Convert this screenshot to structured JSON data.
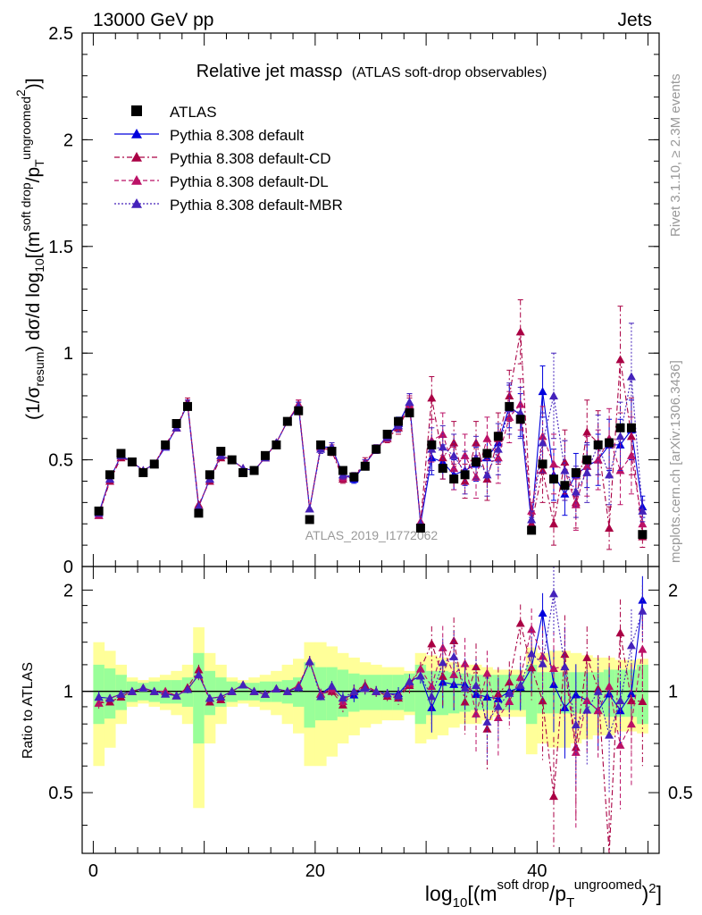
{
  "header": {
    "left": "13000 GeV pp",
    "right": "Jets"
  },
  "side": {
    "rivet": "Rivet 3.1.10, ≥ 2.3M events",
    "mcplots": "mcplots.cern.ch [arXiv:1306.3436]"
  },
  "watermark": "ATLAS_2019_I1772062",
  "chart_data": {
    "type": "scatter",
    "title": "Relative jet massρ",
    "subtitle": "(ATLAS soft-drop observables)",
    "xlabel_parts": {
      "pre": "log",
      "sub10": "10",
      "bracket": "[(m",
      "sup_sd": "soft drop",
      "slash": "/p",
      "sub_T": "T",
      "sup_ug": "ungroomed",
      "close": ")",
      "sup2": "2",
      "end": "]"
    },
    "ylabel_parts": {
      "pre": "(1/σ",
      "sub_resum": "resum",
      "mid": ") dσ/d log",
      "sub10": "10",
      "bracket": "[(m",
      "sup_sd": "soft drop",
      "slash": "/p",
      "sub_T": "T",
      "sup_ug": "ungroomed",
      "sup2": "2",
      "end": ")]"
    },
    "ratio_ylabel": "Ratio to ATLAS",
    "xlim": [
      -1,
      51
    ],
    "ylim": [
      0,
      2.5
    ],
    "ratio_ylim": [
      0.33,
      2.35
    ],
    "x_ticks": [
      0,
      20,
      40
    ],
    "y_ticks": [
      0,
      0.5,
      1,
      1.5,
      2,
      2.5
    ],
    "y_tick_labels": [
      "0",
      "0.5",
      "1",
      "1.5",
      "2",
      "2.5"
    ],
    "ratio_ticks": [
      0.5,
      1,
      2
    ],
    "ratio_tick_labels": [
      "0.5",
      "1",
      "2"
    ],
    "legend_position": "top-left",
    "x": [
      0.5,
      1.5,
      2.5,
      3.5,
      4.5,
      5.5,
      6.5,
      7.5,
      8.5,
      9.5,
      10.5,
      11.5,
      12.5,
      13.5,
      14.5,
      15.5,
      16.5,
      17.5,
      18.5,
      19.5,
      20.5,
      21.5,
      22.5,
      23.5,
      24.5,
      25.5,
      26.5,
      27.5,
      28.5,
      29.5,
      30.5,
      31.5,
      32.5,
      33.5,
      34.5,
      35.5,
      36.5,
      37.5,
      38.5,
      39.5,
      40.5,
      41.5,
      42.5,
      43.5,
      44.5,
      45.5,
      46.5,
      47.5,
      48.5,
      49.5
    ],
    "data": {
      "name": "ATLAS",
      "color": "#000000",
      "values": [
        0.26,
        0.43,
        0.53,
        0.49,
        0.44,
        0.48,
        0.57,
        0.67,
        0.75,
        0.25,
        0.43,
        0.54,
        0.5,
        0.44,
        0.45,
        0.52,
        0.57,
        0.68,
        0.73,
        0.22,
        0.57,
        0.54,
        0.45,
        0.42,
        0.47,
        0.55,
        0.62,
        0.68,
        0.72,
        0.18,
        0.57,
        0.46,
        0.41,
        0.43,
        0.49,
        0.53,
        0.61,
        0.75,
        0.69,
        0.17,
        0.48,
        0.41,
        0.38,
        0.44,
        0.5,
        0.57,
        0.58,
        0.65,
        0.65,
        0.15
      ],
      "band_inner": [
        0.2,
        0.17,
        0.12,
        0.07,
        0.06,
        0.07,
        0.08,
        0.08,
        0.1,
        0.3,
        0.15,
        0.1,
        0.07,
        0.06,
        0.06,
        0.07,
        0.07,
        0.08,
        0.1,
        0.22,
        0.18,
        0.18,
        0.16,
        0.13,
        0.12,
        0.12,
        0.12,
        0.12,
        0.13,
        0.2,
        0.15,
        0.15,
        0.14,
        0.13,
        0.12,
        0.12,
        0.12,
        0.12,
        0.12,
        0.2,
        0.14,
        0.14,
        0.14,
        0.14,
        0.14,
        0.14,
        0.16,
        0.16,
        0.16,
        0.2
      ],
      "band_outer": [
        0.4,
        0.32,
        0.2,
        0.1,
        0.08,
        0.1,
        0.12,
        0.15,
        0.2,
        0.55,
        0.3,
        0.2,
        0.1,
        0.08,
        0.1,
        0.12,
        0.15,
        0.2,
        0.25,
        0.4,
        0.4,
        0.36,
        0.3,
        0.26,
        0.22,
        0.2,
        0.18,
        0.18,
        0.15,
        0.3,
        0.28,
        0.26,
        0.22,
        0.2,
        0.2,
        0.18,
        0.16,
        0.16,
        0.16,
        0.35,
        0.3,
        0.32,
        0.32,
        0.3,
        0.28,
        0.26,
        0.26,
        0.24,
        0.24,
        0.25
      ]
    },
    "series": [
      {
        "name": "Pythia 8.308 default",
        "color": "#0000dd",
        "dash": "",
        "marker": "triangle",
        "values": [
          0.25,
          0.41,
          0.52,
          0.49,
          0.45,
          0.48,
          0.56,
          0.65,
          0.76,
          0.28,
          0.41,
          0.52,
          0.5,
          0.46,
          0.45,
          0.51,
          0.58,
          0.68,
          0.75,
          0.27,
          0.56,
          0.56,
          0.43,
          0.41,
          0.48,
          0.55,
          0.61,
          0.67,
          0.77,
          0.2,
          0.51,
          0.49,
          0.43,
          0.45,
          0.48,
          0.51,
          0.58,
          0.75,
          0.71,
          0.2,
          0.82,
          0.43,
          0.34,
          0.43,
          0.47,
          0.5,
          0.57,
          0.57,
          0.64,
          0.28
        ],
        "err": [
          0.01,
          0.01,
          0.01,
          0.01,
          0.01,
          0.01,
          0.01,
          0.01,
          0.02,
          0.01,
          0.01,
          0.01,
          0.01,
          0.01,
          0.01,
          0.01,
          0.01,
          0.01,
          0.02,
          0.01,
          0.02,
          0.02,
          0.02,
          0.02,
          0.02,
          0.02,
          0.02,
          0.03,
          0.04,
          0.01,
          0.08,
          0.08,
          0.07,
          0.07,
          0.08,
          0.08,
          0.09,
          0.1,
          0.1,
          0.03,
          0.12,
          0.12,
          0.1,
          0.1,
          0.1,
          0.12,
          0.12,
          0.12,
          0.14,
          0.05
        ]
      },
      {
        "name": "Pythia 8.308 default-CD",
        "color": "#aa0044",
        "dash": "6,3,2,3",
        "marker": "triangle",
        "values": [
          0.24,
          0.4,
          0.51,
          0.49,
          0.45,
          0.48,
          0.57,
          0.65,
          0.77,
          0.29,
          0.4,
          0.51,
          0.5,
          0.46,
          0.45,
          0.51,
          0.58,
          0.68,
          0.76,
          0.27,
          0.56,
          0.54,
          0.41,
          0.42,
          0.49,
          0.55,
          0.6,
          0.65,
          0.75,
          0.21,
          0.79,
          0.51,
          0.58,
          0.4,
          0.58,
          0.41,
          0.6,
          0.8,
          1.1,
          0.2,
          0.45,
          0.2,
          0.49,
          0.3,
          0.63,
          0.58,
          0.18,
          0.97,
          0.61,
          0.14
        ],
        "err": [
          0.01,
          0.01,
          0.01,
          0.01,
          0.01,
          0.01,
          0.01,
          0.01,
          0.02,
          0.01,
          0.01,
          0.01,
          0.01,
          0.01,
          0.01,
          0.01,
          0.01,
          0.01,
          0.02,
          0.01,
          0.02,
          0.02,
          0.02,
          0.02,
          0.02,
          0.02,
          0.02,
          0.03,
          0.04,
          0.01,
          0.1,
          0.1,
          0.1,
          0.08,
          0.1,
          0.1,
          0.12,
          0.12,
          0.15,
          0.04,
          0.15,
          0.1,
          0.15,
          0.12,
          0.15,
          0.15,
          0.1,
          0.25,
          0.18,
          0.05
        ]
      },
      {
        "name": "Pythia 8.308 default-DL",
        "color": "#bb1166",
        "dash": "5,3",
        "marker": "triangle",
        "values": [
          0.24,
          0.41,
          0.52,
          0.49,
          0.45,
          0.48,
          0.57,
          0.65,
          0.76,
          0.28,
          0.41,
          0.52,
          0.5,
          0.46,
          0.45,
          0.51,
          0.58,
          0.68,
          0.76,
          0.27,
          0.56,
          0.55,
          0.42,
          0.42,
          0.48,
          0.55,
          0.61,
          0.66,
          0.76,
          0.21,
          0.59,
          0.62,
          0.46,
          0.52,
          0.42,
          0.6,
          0.51,
          0.7,
          0.76,
          0.26,
          0.61,
          0.48,
          0.45,
          0.29,
          0.47,
          0.5,
          0.6,
          0.45,
          0.52,
          0.2
        ],
        "err": [
          0.01,
          0.01,
          0.01,
          0.01,
          0.01,
          0.01,
          0.01,
          0.01,
          0.02,
          0.01,
          0.01,
          0.01,
          0.01,
          0.01,
          0.01,
          0.01,
          0.01,
          0.01,
          0.02,
          0.01,
          0.02,
          0.02,
          0.02,
          0.02,
          0.02,
          0.02,
          0.02,
          0.03,
          0.04,
          0.01,
          0.1,
          0.1,
          0.1,
          0.1,
          0.1,
          0.1,
          0.12,
          0.12,
          0.12,
          0.04,
          0.14,
          0.14,
          0.14,
          0.12,
          0.14,
          0.14,
          0.14,
          0.16,
          0.18,
          0.05
        ]
      },
      {
        "name": "Pythia 8.308 default-MBR",
        "color": "#4422bb",
        "dash": "2,2",
        "marker": "triangle",
        "values": [
          0.25,
          0.41,
          0.52,
          0.49,
          0.45,
          0.48,
          0.56,
          0.65,
          0.76,
          0.28,
          0.41,
          0.52,
          0.5,
          0.46,
          0.45,
          0.51,
          0.58,
          0.68,
          0.75,
          0.27,
          0.55,
          0.56,
          0.43,
          0.42,
          0.48,
          0.55,
          0.61,
          0.66,
          0.77,
          0.2,
          0.55,
          0.56,
          0.52,
          0.44,
          0.51,
          0.43,
          0.55,
          0.74,
          0.72,
          0.22,
          0.58,
          0.8,
          0.45,
          0.35,
          0.44,
          0.57,
          0.43,
          0.61,
          0.89,
          0.26
        ],
        "err": [
          0.01,
          0.01,
          0.01,
          0.01,
          0.01,
          0.01,
          0.01,
          0.01,
          0.02,
          0.01,
          0.01,
          0.01,
          0.01,
          0.01,
          0.01,
          0.01,
          0.01,
          0.01,
          0.02,
          0.01,
          0.02,
          0.02,
          0.02,
          0.02,
          0.02,
          0.02,
          0.02,
          0.03,
          0.04,
          0.01,
          0.1,
          0.1,
          0.1,
          0.1,
          0.1,
          0.1,
          0.12,
          0.12,
          0.12,
          0.04,
          0.14,
          0.2,
          0.14,
          0.12,
          0.14,
          0.14,
          0.14,
          0.16,
          0.25,
          0.05
        ]
      }
    ]
  }
}
